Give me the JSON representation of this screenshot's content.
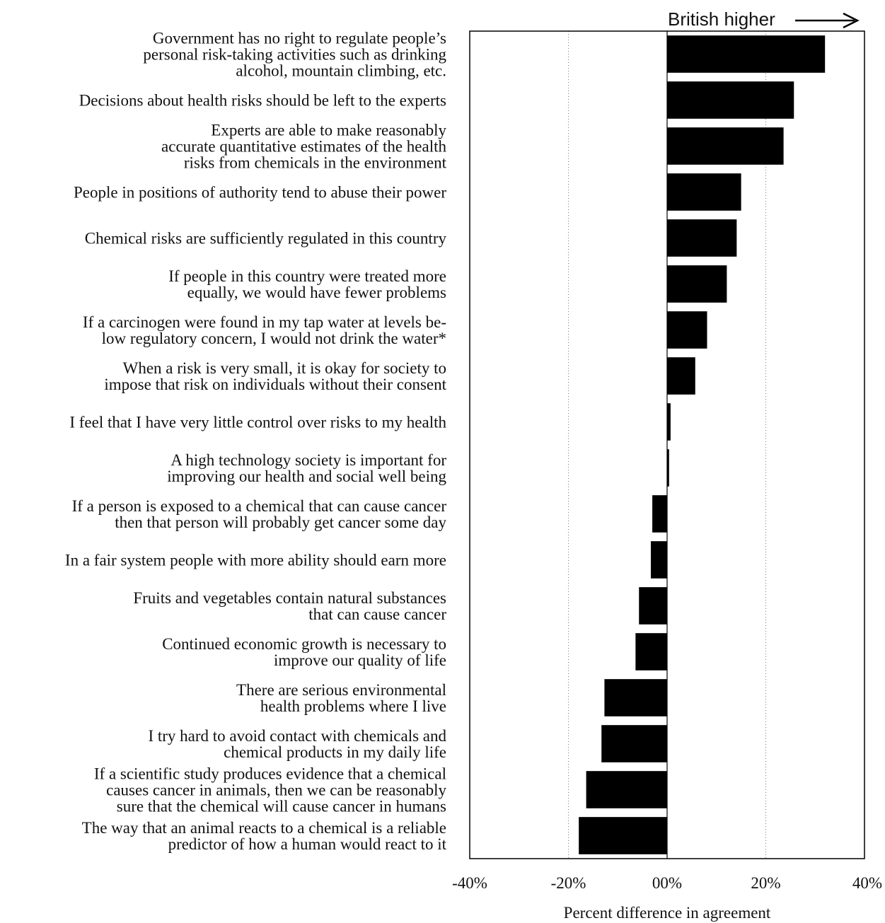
{
  "chart_data": {
    "type": "bar",
    "orientation": "horizontal",
    "annotation": "British higher",
    "annotation_arrow": "right",
    "xlabel": "Percent difference in agreement",
    "ylabel": "",
    "xlim": [
      -40,
      40
    ],
    "xticks": [
      {
        "value": -40,
        "label": "-40%"
      },
      {
        "value": -20,
        "label": "-20%"
      },
      {
        "value": 0,
        "label": "00%"
      },
      {
        "value": 20,
        "label": "20%"
      },
      {
        "value": 40,
        "label": "40%"
      }
    ],
    "gridlines_x": [
      -20,
      20
    ],
    "gridline_style": "dotted",
    "bar_color": "#000000",
    "categories": [
      {
        "lines": [
          "Government has no right to regulate people’s",
          "personal risk-taking activities such as drinking",
          "alcohol, mountain climbing, etc."
        ],
        "value": 32.0
      },
      {
        "lines": [
          "Decisions about health risks should be left to the experts"
        ],
        "value": 25.7
      },
      {
        "lines": [
          "Experts are able to make reasonably",
          "accurate quantitative estimates of the health",
          "risks from chemicals in the environment"
        ],
        "value": 23.6
      },
      {
        "lines": [
          "People in positions of authority tend to abuse their power"
        ],
        "value": 15.0
      },
      {
        "lines": [
          "Chemical risks are sufficiently regulated in this country"
        ],
        "value": 14.1
      },
      {
        "lines": [
          "If people in this country were treated more",
          "equally, we would have fewer problems"
        ],
        "value": 12.1
      },
      {
        "lines": [
          "If a carcinogen were found in my tap water at levels be-",
          "low regulatory concern, I would not drink the water*"
        ],
        "value": 8.1
      },
      {
        "lines": [
          "When a risk is very small, it is okay for society to",
          "impose that risk on individuals without their consent"
        ],
        "value": 5.7
      },
      {
        "lines": [
          "I feel that I have very little control over risks to my health"
        ],
        "value": 0.7
      },
      {
        "lines": [
          "A high technology society is important for",
          "improving our health and social well being"
        ],
        "value": 0.4
      },
      {
        "lines": [
          "If a person is exposed to a chemical that can cause cancer",
          "then that person will probably get cancer some day"
        ],
        "value": -3.0
      },
      {
        "lines": [
          "In a fair system people with more ability should earn more"
        ],
        "value": -3.3
      },
      {
        "lines": [
          "Fruits and vegetables contain natural substances",
          "that can cause cancer"
        ],
        "value": -5.7
      },
      {
        "lines": [
          "Continued economic growth is necessary to",
          "improve our quality of life"
        ],
        "value": -6.4
      },
      {
        "lines": [
          "There are serious environmental",
          "health problems where I live"
        ],
        "value": -12.7
      },
      {
        "lines": [
          "I try hard to avoid contact with chemicals and",
          "chemical products in my daily life"
        ],
        "value": -13.3
      },
      {
        "lines": [
          "If a scientific study produces evidence that a chemical",
          "causes cancer in animals, then we can be reasonably",
          "sure that the chemical will cause cancer in humans"
        ],
        "value": -16.4
      },
      {
        "lines": [
          "The way that an animal reacts to a chemical is a reliable",
          "predictor of how a human would react to it"
        ],
        "value": -17.9
      }
    ]
  }
}
